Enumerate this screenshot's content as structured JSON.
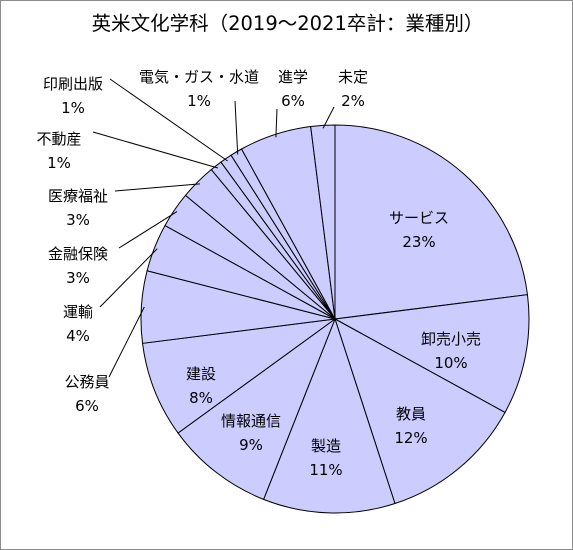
{
  "chart_data": {
    "type": "pie",
    "title": "英米文化学科（2019～2021卒計：業種別）",
    "start": "12 o'clock",
    "direction": "clockwise",
    "slice_fill": "#ccccff",
    "slice_stroke": "#000000",
    "slices": [
      {
        "label": "サービス",
        "value": 23,
        "value_label": "23%"
      },
      {
        "label": "卸売小売",
        "value": 10,
        "value_label": "10%"
      },
      {
        "label": "教員",
        "value": 12,
        "value_label": "12%"
      },
      {
        "label": "製造",
        "value": 11,
        "value_label": "11%"
      },
      {
        "label": "情報通信",
        "value": 9,
        "value_label": "9%"
      },
      {
        "label": "建設",
        "value": 8,
        "value_label": "8%"
      },
      {
        "label": "公務員",
        "value": 6,
        "value_label": "6%"
      },
      {
        "label": "運輸",
        "value": 4,
        "value_label": "4%"
      },
      {
        "label": "金融保険",
        "value": 3,
        "value_label": "3%"
      },
      {
        "label": "医療福祉",
        "value": 3,
        "value_label": "3%"
      },
      {
        "label": "不動産",
        "value": 1,
        "value_label": "1%"
      },
      {
        "label": "印刷出版",
        "value": 1,
        "value_label": "1%"
      },
      {
        "label": "電気・ガス・水道",
        "value": 1,
        "value_label": "1%"
      },
      {
        "label": "進学",
        "value": 6,
        "value_label": "6%"
      },
      {
        "label": "未定",
        "value": 2,
        "value_label": "2%"
      }
    ]
  }
}
